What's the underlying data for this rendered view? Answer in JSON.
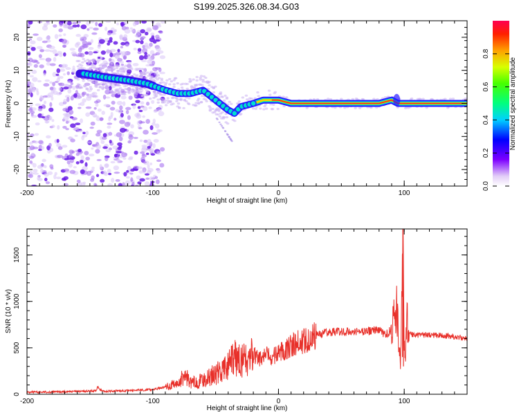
{
  "title": "S199.2025.326.08.34.G03",
  "colors": {
    "snr_line": "#e8302a",
    "frame": "#000000",
    "track_core": "#ff1a1a",
    "scatter": "#7a2df0"
  },
  "chart_data": [
    {
      "type": "heatmap",
      "name": "spectrogram",
      "xlabel": "Height of straight line (km)",
      "ylabel": "Frequency (Hz)",
      "xlim": [
        -200,
        150
      ],
      "ylim": [
        -25,
        25
      ],
      "x_ticks": [
        -200,
        -100,
        0,
        100
      ],
      "y_ticks": [
        -20,
        -10,
        0,
        10,
        20
      ],
      "colorbar": {
        "label": "Normalized spectral amplitude",
        "range": [
          0.0,
          1.0
        ],
        "ticks": [
          0.0,
          0.2,
          0.4,
          0.6,
          0.8
        ],
        "tick_labels": [
          "0.0",
          "0.2",
          "0.4",
          "0.6",
          "0.8"
        ],
        "colormap": "rainbow"
      },
      "track": {
        "description": "dominant frequency ridge vs height",
        "x": [
          -155,
          -140,
          -120,
          -105,
          -90,
          -80,
          -70,
          -60,
          -50,
          -40,
          -35,
          -30,
          -20,
          -12,
          -5,
          0,
          10,
          40,
          80,
          90,
          95,
          100,
          150
        ],
        "y": [
          9,
          8,
          7,
          6,
          4,
          3,
          3,
          4,
          1,
          -2,
          -3,
          -1,
          0,
          1,
          1,
          1,
          0,
          0,
          0,
          1,
          0,
          0,
          0
        ]
      }
    },
    {
      "type": "line",
      "name": "snr",
      "xlabel": "Height of straight line (km)",
      "ylabel": "SNR (10 * v/v)",
      "xlim": [
        -200,
        150
      ],
      "ylim": [
        0,
        1780
      ],
      "x_ticks": [
        -200,
        -100,
        0,
        100
      ],
      "y_ticks": [
        0,
        500,
        1000,
        1500
      ],
      "series": [
        {
          "name": "SNR",
          "x": [
            -200,
            -180,
            -160,
            -145,
            -144,
            -140,
            -120,
            -100,
            -90,
            -80,
            -75,
            -72,
            -70,
            -60,
            -50,
            -45,
            -40,
            -35,
            -25,
            -20,
            -15,
            -10,
            -5,
            0,
            10,
            20,
            30,
            40,
            60,
            70,
            75,
            80,
            85,
            90,
            94,
            96,
            97,
            98,
            99,
            100,
            101,
            102,
            104,
            110,
            120,
            140,
            150
          ],
          "y": [
            20,
            25,
            30,
            35,
            80,
            30,
            40,
            50,
            80,
            110,
            200,
            170,
            120,
            150,
            220,
            250,
            300,
            380,
            360,
            420,
            380,
            420,
            390,
            450,
            520,
            580,
            640,
            670,
            680,
            670,
            700,
            690,
            640,
            700,
            900,
            550,
            250,
            1100,
            1780,
            600,
            380,
            800,
            650,
            640,
            640,
            620,
            600
          ]
        }
      ]
    }
  ]
}
